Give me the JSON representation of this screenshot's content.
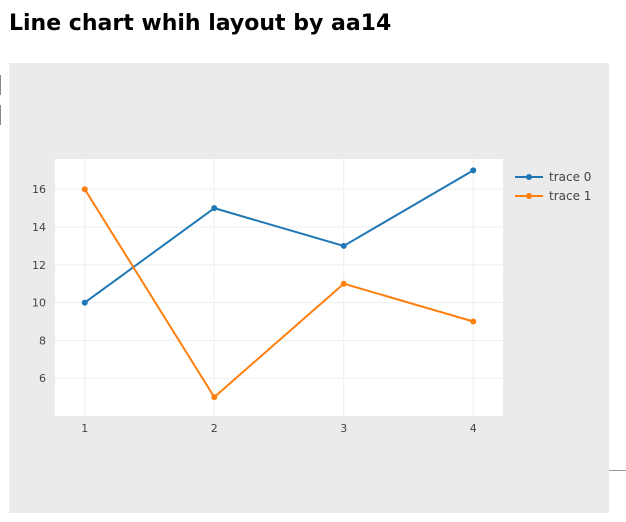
{
  "page": {
    "title": "Line chart whih layout by aa14"
  },
  "colors": {
    "paper_bg": "#ebebeb",
    "plot_bg": "#ffffff",
    "grid": "#eeeeee",
    "trace0": "#1f77b4",
    "trace1": "#ff7f0e"
  },
  "chart_data": {
    "type": "line",
    "mode": "lines+markers",
    "title": "",
    "xlabel": "",
    "ylabel": "",
    "x": [
      1,
      2,
      3,
      4
    ],
    "x_ticks": [
      "1",
      "2",
      "3",
      "4"
    ],
    "y_ticks": [
      "6",
      "8",
      "10",
      "12",
      "14",
      "16"
    ],
    "xlim": [
      0.77,
      4.23
    ],
    "ylim": [
      4.0,
      17.6
    ],
    "grid": true,
    "legend_position": "top-right",
    "series": [
      {
        "name": "trace 0",
        "values": [
          10,
          15,
          13,
          17
        ],
        "color": "#1f77b4"
      },
      {
        "name": "trace 1",
        "values": [
          16,
          5,
          11,
          9
        ],
        "color": "#ff7f0e"
      }
    ]
  }
}
